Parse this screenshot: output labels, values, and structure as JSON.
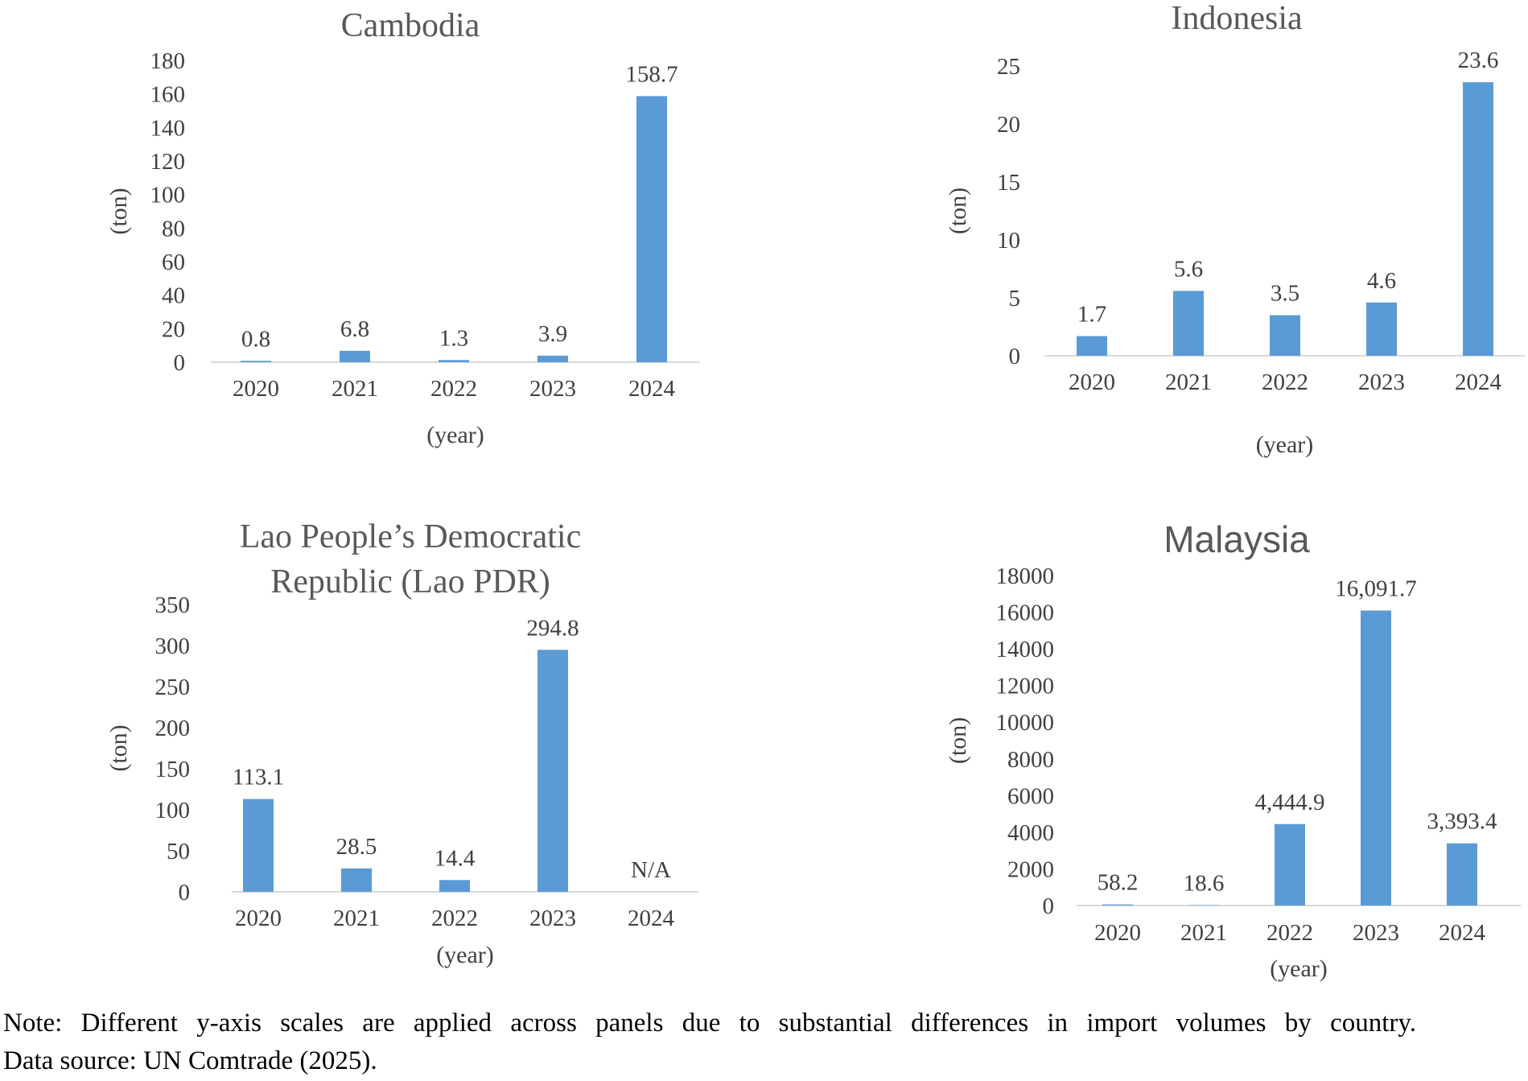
{
  "chart_data": [
    {
      "type": "bar",
      "title": "Cambodia",
      "categories": [
        "2020",
        "2021",
        "2022",
        "2023",
        "2024"
      ],
      "values": [
        0.8,
        6.8,
        1.3,
        3.9,
        158.7
      ],
      "data_labels": [
        "0.8",
        "6.8",
        "1.3",
        "3.9",
        "158.7"
      ],
      "ylim": [
        0,
        180
      ],
      "yticks": [
        "0",
        "20",
        "40",
        "60",
        "80",
        "100",
        "120",
        "140",
        "160",
        "180"
      ],
      "xlabel": "(year)",
      "ylabel": "(ton)",
      "bar_color": "#5B9BD5",
      "grid": false
    },
    {
      "type": "bar",
      "title": "Indonesia",
      "categories": [
        "2020",
        "2021",
        "2022",
        "2023",
        "2024"
      ],
      "values": [
        1.7,
        5.6,
        3.5,
        4.6,
        23.6
      ],
      "data_labels": [
        "1.7",
        "5.6",
        "3.5",
        "4.6",
        "23.6"
      ],
      "ylim": [
        0,
        25
      ],
      "yticks": [
        "0",
        "5",
        "10",
        "15",
        "20",
        "25"
      ],
      "xlabel": "(year)",
      "ylabel": "(ton)",
      "bar_color": "#5B9BD5",
      "grid": false
    },
    {
      "type": "bar",
      "title": "Lao People’s Democratic Republic (Lao PDR)",
      "title_lines": [
        "Lao People’s Democratic",
        "Republic (Lao PDR)"
      ],
      "categories": [
        "2020",
        "2021",
        "2022",
        "2023",
        "2024"
      ],
      "values": [
        113.1,
        28.5,
        14.4,
        294.8,
        null
      ],
      "data_labels": [
        "113.1",
        "28.5",
        "14.4",
        "294.8",
        "N/A"
      ],
      "ylim": [
        0,
        350
      ],
      "yticks": [
        "0",
        "50",
        "100",
        "150",
        "200",
        "250",
        "300",
        "350"
      ],
      "xlabel": "(year)",
      "ylabel": "(ton)",
      "bar_color": "#5B9BD5",
      "grid": false
    },
    {
      "type": "bar",
      "title": "Malaysia",
      "categories": [
        "2020",
        "2021",
        "2022",
        "2023",
        "2024"
      ],
      "values": [
        58.2,
        18.6,
        4444.9,
        16091.7,
        3393.4
      ],
      "data_labels": [
        "58.2",
        "18.6",
        "4,444.9",
        "16,091.7",
        "3,393.4"
      ],
      "ylim": [
        0,
        18000
      ],
      "yticks": [
        "0",
        "2000",
        "4000",
        "6000",
        "8000",
        "10000",
        "12000",
        "14000",
        "16000",
        "18000"
      ],
      "xlabel": "(year)",
      "ylabel": "(ton)",
      "bar_color": "#5B9BD5",
      "grid": false
    }
  ],
  "note": {
    "line1": "Note: Different y-axis scales are applied across panels due to substantial differences in import volumes by country.",
    "line2": "Data source: UN Comtrade (2025)."
  }
}
